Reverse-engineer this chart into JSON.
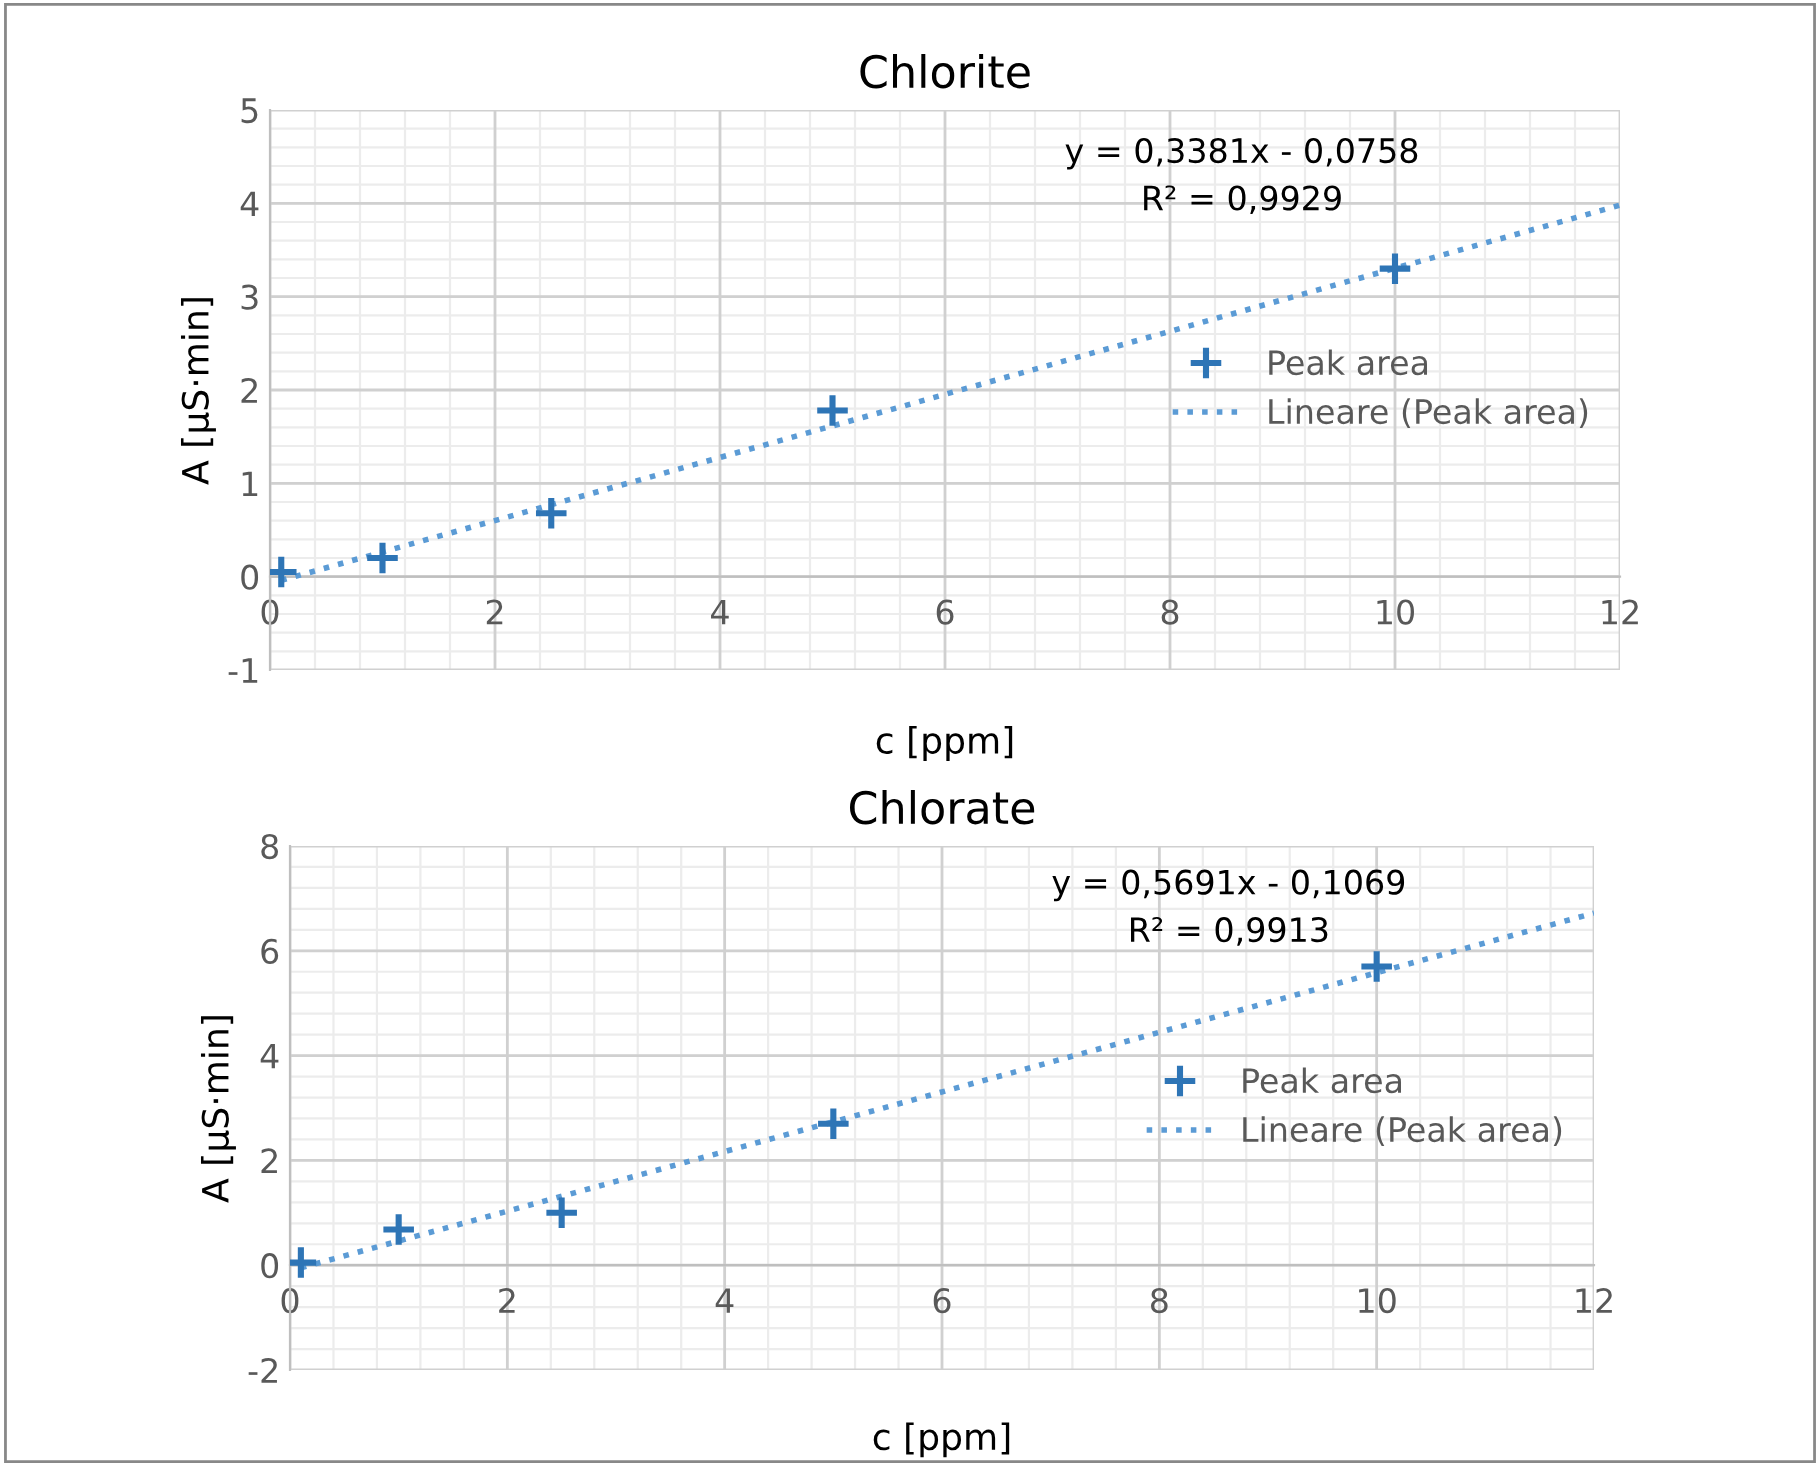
{
  "chart_data": [
    {
      "type": "scatter",
      "title": "Chlorite",
      "xlabel": "c [ppm]",
      "ylabel": "A [µS·min]",
      "xlim": [
        0,
        12
      ],
      "ylim": [
        -1,
        5
      ],
      "xticks": [
        0,
        2,
        4,
        6,
        8,
        10,
        12
      ],
      "yticks": [
        -1,
        0,
        1,
        2,
        3,
        4,
        5
      ],
      "grid": true,
      "legend": "right",
      "annotations": [
        "y = 0,3381x - 0,0758\nR² = 0,9929"
      ],
      "series": [
        {
          "name": "Peak area",
          "marker": "cross",
          "color": "#2e75b6",
          "x": [
            0.1,
            1,
            2.5,
            5,
            10
          ],
          "values": [
            0.05,
            0.2,
            0.68,
            1.78,
            3.3
          ]
        },
        {
          "name": "Lineare (Peak area)",
          "type": "line",
          "line_style": "dotted",
          "color": "#5b9bd5",
          "x": [
            0.1,
            12
          ],
          "values": [
            -0.04,
            3.98
          ]
        }
      ]
    },
    {
      "type": "scatter",
      "title": "Chlorate",
      "xlabel": "c [ppm]",
      "ylabel": "A [µS·min]",
      "xlim": [
        0,
        12
      ],
      "ylim": [
        -2,
        8
      ],
      "xticks": [
        0,
        2,
        4,
        6,
        8,
        10,
        12
      ],
      "yticks": [
        -2,
        0,
        2,
        4,
        6,
        8
      ],
      "grid": true,
      "legend": "right",
      "annotations": [
        "y = 0,5691x - 0,1069\nR² = 0,9913"
      ],
      "series": [
        {
          "name": "Peak area",
          "marker": "cross",
          "color": "#2e75b6",
          "x": [
            0.1,
            1,
            2.5,
            5,
            10
          ],
          "values": [
            0.05,
            0.68,
            1.0,
            2.7,
            5.7
          ]
        },
        {
          "name": "Lineare (Peak area)",
          "type": "line",
          "line_style": "dotted",
          "color": "#5b9bd5",
          "x": [
            0.1,
            12
          ],
          "values": [
            -0.05,
            6.72
          ]
        }
      ]
    }
  ]
}
